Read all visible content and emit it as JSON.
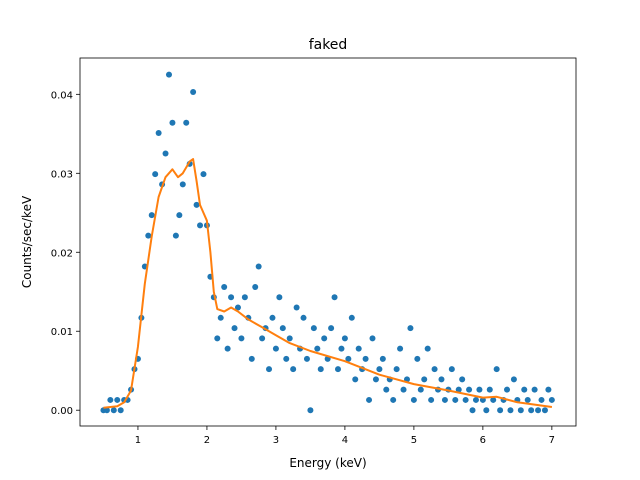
{
  "chart_data": {
    "type": "scatter",
    "title": "faked",
    "xlabel": "Energy (keV)",
    "ylabel": "Counts/sec/keV",
    "xlim": [
      0.16,
      7.35
    ],
    "ylim": [
      -0.002,
      0.0446
    ],
    "xticks": [
      1,
      2,
      3,
      4,
      5,
      6,
      7
    ],
    "xtick_labels": [
      "1",
      "2",
      "3",
      "4",
      "5",
      "6",
      "7"
    ],
    "yticks": [
      0,
      0.01,
      0.02,
      0.03,
      0.04
    ],
    "ytick_labels": [
      "0.00",
      "0.01",
      "0.02",
      "0.03",
      "0.04"
    ],
    "grid": false,
    "colors": {
      "data": "#1f77b4",
      "model": "#ff7f0e"
    },
    "series": [
      {
        "type": "scatter",
        "x": [
          0.5,
          0.55,
          0.6,
          0.65,
          0.7,
          0.75,
          0.8,
          0.85,
          0.9,
          0.95,
          1.0,
          1.05,
          1.1,
          1.15,
          1.2,
          1.25,
          1.3,
          1.35,
          1.4,
          1.45,
          1.5,
          1.55,
          1.6,
          1.65,
          1.7,
          1.75,
          1.8,
          1.85,
          1.9,
          1.95,
          2.0,
          2.05,
          2.1,
          2.15,
          2.2,
          2.25,
          2.3,
          2.35,
          2.4,
          2.45,
          2.5,
          2.55,
          2.6,
          2.65,
          2.7,
          2.75,
          2.8,
          2.85,
          2.9,
          2.95,
          3.0,
          3.05,
          3.1,
          3.15,
          3.2,
          3.25,
          3.3,
          3.35,
          3.4,
          3.45,
          3.5,
          3.55,
          3.6,
          3.65,
          3.7,
          3.75,
          3.8,
          3.85,
          3.9,
          3.95,
          4.0,
          4.05,
          4.1,
          4.15,
          4.2,
          4.25,
          4.3,
          4.35,
          4.4,
          4.45,
          4.5,
          4.55,
          4.6,
          4.65,
          4.7,
          4.75,
          4.8,
          4.85,
          4.9,
          4.95,
          5.0,
          5.05,
          5.1,
          5.15,
          5.2,
          5.25,
          5.3,
          5.35,
          5.4,
          5.45,
          5.5,
          5.55,
          5.6,
          5.65,
          5.7,
          5.75,
          5.8,
          5.85,
          5.9,
          5.95,
          6.0,
          6.05,
          6.1,
          6.15,
          6.2,
          6.25,
          6.3,
          6.35,
          6.4,
          6.45,
          6.5,
          6.55,
          6.6,
          6.65,
          6.7,
          6.75,
          6.8,
          6.85,
          6.9,
          6.95,
          7.0
        ],
        "y": [
          0,
          0,
          0.0013,
          0,
          0.0013,
          0,
          0.0013,
          0.0013,
          0.0026,
          0.0052,
          0.0065,
          0.0117,
          0.0182,
          0.0221,
          0.0247,
          0.0299,
          0.0351,
          0.0286,
          0.0325,
          0.0425,
          0.0364,
          0.0221,
          0.0247,
          0.0286,
          0.0364,
          0.0312,
          0.0403,
          0.026,
          0.0234,
          0.0299,
          0.0234,
          0.0169,
          0.0143,
          0.0091,
          0.0117,
          0.0156,
          0.0078,
          0.0143,
          0.0104,
          0.013,
          0.0091,
          0.0143,
          0.0117,
          0.0065,
          0.0156,
          0.0182,
          0.0091,
          0.0104,
          0.0052,
          0.0117,
          0.0078,
          0.0143,
          0.0104,
          0.0065,
          0.0091,
          0.0052,
          0.013,
          0.0078,
          0.0117,
          0.0065,
          0,
          0.0104,
          0.0078,
          0.0052,
          0.0091,
          0.0065,
          0.0104,
          0.0143,
          0.0052,
          0.0078,
          0.0091,
          0.0065,
          0.0117,
          0.0039,
          0.0078,
          0.0052,
          0.0065,
          0.0013,
          0.0091,
          0.0039,
          0.0052,
          0.0065,
          0.0026,
          0.0039,
          0.0013,
          0.0052,
          0.0078,
          0.0026,
          0.0039,
          0.0104,
          0.0013,
          0.0065,
          0.0026,
          0.0039,
          0.0078,
          0.0013,
          0.0052,
          0.0026,
          0.0039,
          0.0013,
          0.0026,
          0.0052,
          0.0013,
          0.0026,
          0.0039,
          0.0013,
          0.0026,
          0,
          0.0013,
          0.0026,
          0.0013,
          0,
          0.0026,
          0.0013,
          0.0052,
          0,
          0.0013,
          0.0026,
          0,
          0.0039,
          0.0013,
          0,
          0.0026,
          0.0013,
          0,
          0.0026,
          0,
          0.0013,
          0,
          0.0026,
          0.0013
        ]
      },
      {
        "type": "line",
        "x": [
          0.5,
          0.7,
          0.8,
          0.9,
          1.0,
          1.1,
          1.2,
          1.3,
          1.4,
          1.5,
          1.58,
          1.65,
          1.75,
          1.8,
          1.85,
          1.9,
          2.0,
          2.05,
          2.1,
          2.15,
          2.25,
          2.35,
          2.45,
          2.6,
          2.8,
          3.0,
          3.2,
          3.5,
          4.0,
          4.5,
          5.0,
          5.5,
          6.0,
          6.2,
          6.5,
          7.0
        ],
        "y": [
          0.0003,
          0.0005,
          0.001,
          0.0025,
          0.008,
          0.016,
          0.022,
          0.027,
          0.0295,
          0.0305,
          0.0295,
          0.03,
          0.0315,
          0.0318,
          0.029,
          0.026,
          0.024,
          0.02,
          0.015,
          0.0128,
          0.0125,
          0.013,
          0.0125,
          0.0115,
          0.0105,
          0.0095,
          0.0085,
          0.0075,
          0.0062,
          0.0045,
          0.0033,
          0.0025,
          0.0016,
          0.0017,
          0.001,
          0.0004
        ]
      }
    ]
  }
}
